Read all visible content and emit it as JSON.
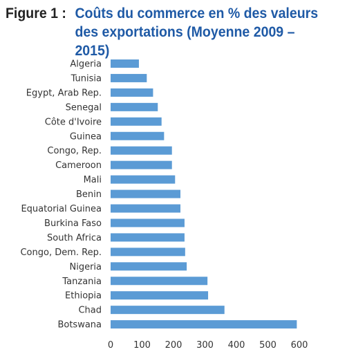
{
  "figure": {
    "label": "Figure 1 :",
    "title_line1": "Coûts du commerce en % des valeurs",
    "title_line2": "des exportations (Moyenne 2009 – 2015)"
  },
  "colors": {
    "bar": "#5b9bd5",
    "title": "#1f5aa6",
    "label": "#222222"
  },
  "chart_data": {
    "type": "bar",
    "orientation": "horizontal",
    "categories": [
      "Algeria",
      "Tunisia",
      "Egypt, Arab Rep.",
      "Senegal",
      "Côte d'Ivoire",
      "Guinea",
      "Congo, Rep.",
      "Cameroon",
      "Mali",
      "Benin",
      "Equatorial Guinea",
      "Burkina Faso",
      "South Africa",
      "Congo, Dem. Rep.",
      "Nigeria",
      "Tanzania",
      "Ethiopia",
      "Chad",
      "Botswana"
    ],
    "values": [
      90,
      115,
      135,
      150,
      162,
      170,
      195,
      195,
      205,
      222,
      222,
      235,
      235,
      237,
      242,
      308,
      310,
      362,
      592
    ],
    "xticks": [
      "0",
      "100",
      "200",
      "300",
      "400",
      "500",
      "600"
    ],
    "xlim": [
      0,
      600
    ],
    "grid": false,
    "legend": "none"
  }
}
